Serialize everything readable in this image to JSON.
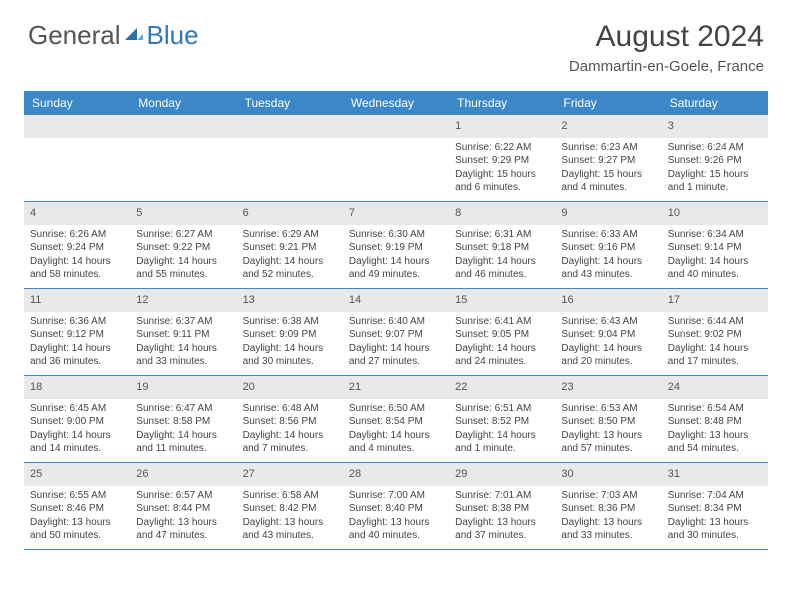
{
  "logo": {
    "part1": "General",
    "part2": "Blue"
  },
  "title": "August 2024",
  "subtitle": "Dammartin-en-Goele, France",
  "colors": {
    "header_bg": "#3b87c8",
    "header_text": "#ffffff",
    "daynum_bg": "#e7e9eb",
    "border": "#3b87c8",
    "text": "#444444"
  },
  "dow": [
    "Sunday",
    "Monday",
    "Tuesday",
    "Wednesday",
    "Thursday",
    "Friday",
    "Saturday"
  ],
  "weeks": [
    [
      {
        "num": "",
        "sunrise": "",
        "sunset": "",
        "daylight": ""
      },
      {
        "num": "",
        "sunrise": "",
        "sunset": "",
        "daylight": ""
      },
      {
        "num": "",
        "sunrise": "",
        "sunset": "",
        "daylight": ""
      },
      {
        "num": "",
        "sunrise": "",
        "sunset": "",
        "daylight": ""
      },
      {
        "num": "1",
        "sunrise": "Sunrise: 6:22 AM",
        "sunset": "Sunset: 9:29 PM",
        "daylight": "Daylight: 15 hours and 6 minutes."
      },
      {
        "num": "2",
        "sunrise": "Sunrise: 6:23 AM",
        "sunset": "Sunset: 9:27 PM",
        "daylight": "Daylight: 15 hours and 4 minutes."
      },
      {
        "num": "3",
        "sunrise": "Sunrise: 6:24 AM",
        "sunset": "Sunset: 9:26 PM",
        "daylight": "Daylight: 15 hours and 1 minute."
      }
    ],
    [
      {
        "num": "4",
        "sunrise": "Sunrise: 6:26 AM",
        "sunset": "Sunset: 9:24 PM",
        "daylight": "Daylight: 14 hours and 58 minutes."
      },
      {
        "num": "5",
        "sunrise": "Sunrise: 6:27 AM",
        "sunset": "Sunset: 9:22 PM",
        "daylight": "Daylight: 14 hours and 55 minutes."
      },
      {
        "num": "6",
        "sunrise": "Sunrise: 6:29 AM",
        "sunset": "Sunset: 9:21 PM",
        "daylight": "Daylight: 14 hours and 52 minutes."
      },
      {
        "num": "7",
        "sunrise": "Sunrise: 6:30 AM",
        "sunset": "Sunset: 9:19 PM",
        "daylight": "Daylight: 14 hours and 49 minutes."
      },
      {
        "num": "8",
        "sunrise": "Sunrise: 6:31 AM",
        "sunset": "Sunset: 9:18 PM",
        "daylight": "Daylight: 14 hours and 46 minutes."
      },
      {
        "num": "9",
        "sunrise": "Sunrise: 6:33 AM",
        "sunset": "Sunset: 9:16 PM",
        "daylight": "Daylight: 14 hours and 43 minutes."
      },
      {
        "num": "10",
        "sunrise": "Sunrise: 6:34 AM",
        "sunset": "Sunset: 9:14 PM",
        "daylight": "Daylight: 14 hours and 40 minutes."
      }
    ],
    [
      {
        "num": "11",
        "sunrise": "Sunrise: 6:36 AM",
        "sunset": "Sunset: 9:12 PM",
        "daylight": "Daylight: 14 hours and 36 minutes."
      },
      {
        "num": "12",
        "sunrise": "Sunrise: 6:37 AM",
        "sunset": "Sunset: 9:11 PM",
        "daylight": "Daylight: 14 hours and 33 minutes."
      },
      {
        "num": "13",
        "sunrise": "Sunrise: 6:38 AM",
        "sunset": "Sunset: 9:09 PM",
        "daylight": "Daylight: 14 hours and 30 minutes."
      },
      {
        "num": "14",
        "sunrise": "Sunrise: 6:40 AM",
        "sunset": "Sunset: 9:07 PM",
        "daylight": "Daylight: 14 hours and 27 minutes."
      },
      {
        "num": "15",
        "sunrise": "Sunrise: 6:41 AM",
        "sunset": "Sunset: 9:05 PM",
        "daylight": "Daylight: 14 hours and 24 minutes."
      },
      {
        "num": "16",
        "sunrise": "Sunrise: 6:43 AM",
        "sunset": "Sunset: 9:04 PM",
        "daylight": "Daylight: 14 hours and 20 minutes."
      },
      {
        "num": "17",
        "sunrise": "Sunrise: 6:44 AM",
        "sunset": "Sunset: 9:02 PM",
        "daylight": "Daylight: 14 hours and 17 minutes."
      }
    ],
    [
      {
        "num": "18",
        "sunrise": "Sunrise: 6:45 AM",
        "sunset": "Sunset: 9:00 PM",
        "daylight": "Daylight: 14 hours and 14 minutes."
      },
      {
        "num": "19",
        "sunrise": "Sunrise: 6:47 AM",
        "sunset": "Sunset: 8:58 PM",
        "daylight": "Daylight: 14 hours and 11 minutes."
      },
      {
        "num": "20",
        "sunrise": "Sunrise: 6:48 AM",
        "sunset": "Sunset: 8:56 PM",
        "daylight": "Daylight: 14 hours and 7 minutes."
      },
      {
        "num": "21",
        "sunrise": "Sunrise: 6:50 AM",
        "sunset": "Sunset: 8:54 PM",
        "daylight": "Daylight: 14 hours and 4 minutes."
      },
      {
        "num": "22",
        "sunrise": "Sunrise: 6:51 AM",
        "sunset": "Sunset: 8:52 PM",
        "daylight": "Daylight: 14 hours and 1 minute."
      },
      {
        "num": "23",
        "sunrise": "Sunrise: 6:53 AM",
        "sunset": "Sunset: 8:50 PM",
        "daylight": "Daylight: 13 hours and 57 minutes."
      },
      {
        "num": "24",
        "sunrise": "Sunrise: 6:54 AM",
        "sunset": "Sunset: 8:48 PM",
        "daylight": "Daylight: 13 hours and 54 minutes."
      }
    ],
    [
      {
        "num": "25",
        "sunrise": "Sunrise: 6:55 AM",
        "sunset": "Sunset: 8:46 PM",
        "daylight": "Daylight: 13 hours and 50 minutes."
      },
      {
        "num": "26",
        "sunrise": "Sunrise: 6:57 AM",
        "sunset": "Sunset: 8:44 PM",
        "daylight": "Daylight: 13 hours and 47 minutes."
      },
      {
        "num": "27",
        "sunrise": "Sunrise: 6:58 AM",
        "sunset": "Sunset: 8:42 PM",
        "daylight": "Daylight: 13 hours and 43 minutes."
      },
      {
        "num": "28",
        "sunrise": "Sunrise: 7:00 AM",
        "sunset": "Sunset: 8:40 PM",
        "daylight": "Daylight: 13 hours and 40 minutes."
      },
      {
        "num": "29",
        "sunrise": "Sunrise: 7:01 AM",
        "sunset": "Sunset: 8:38 PM",
        "daylight": "Daylight: 13 hours and 37 minutes."
      },
      {
        "num": "30",
        "sunrise": "Sunrise: 7:03 AM",
        "sunset": "Sunset: 8:36 PM",
        "daylight": "Daylight: 13 hours and 33 minutes."
      },
      {
        "num": "31",
        "sunrise": "Sunrise: 7:04 AM",
        "sunset": "Sunset: 8:34 PM",
        "daylight": "Daylight: 13 hours and 30 minutes."
      }
    ]
  ]
}
